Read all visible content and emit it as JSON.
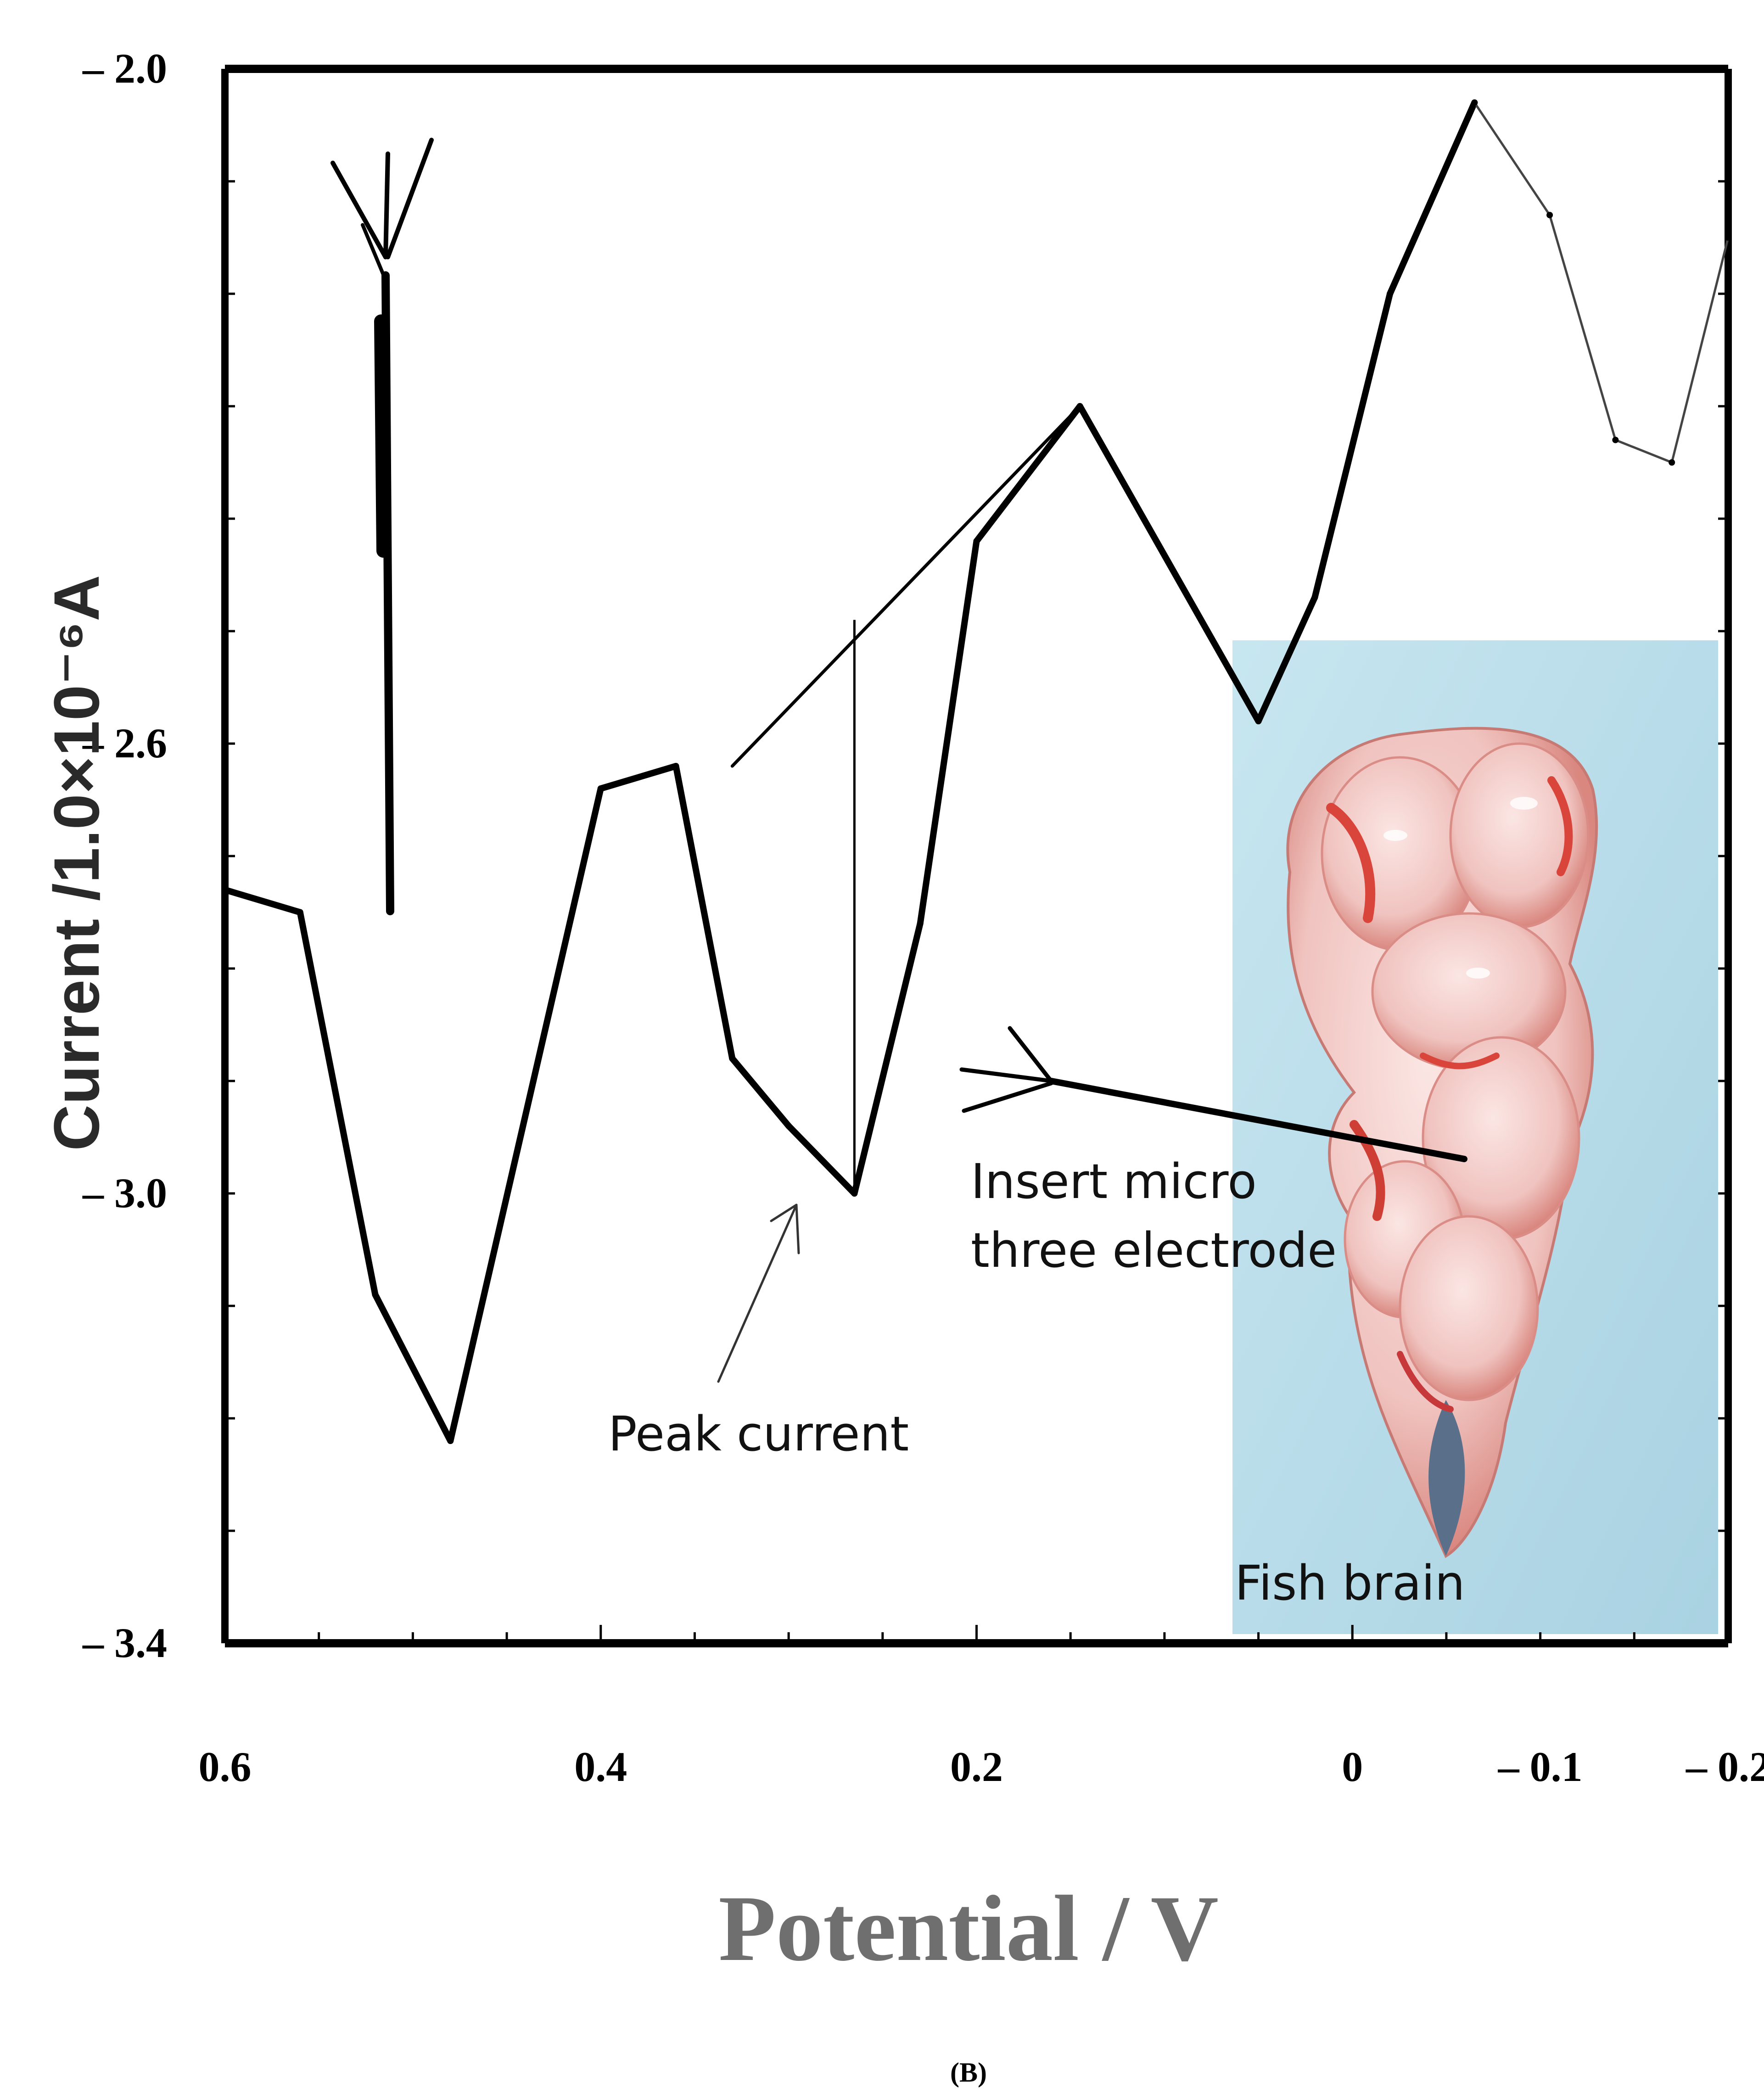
{
  "chart_data": {
    "type": "line",
    "xlabel": "Potential / V",
    "ylabel": "Current /1.0×10⁻⁶A",
    "xlim": [
      0.6,
      -0.2
    ],
    "ylim": [
      -3.4,
      -2.0
    ],
    "x_ticks": [
      "0.6",
      "0.4",
      "0.2",
      "0",
      "– 0.1",
      "– 0.2"
    ],
    "y_ticks": [
      "– 2.0",
      "– 2.6",
      "– 3.0",
      "– 3.4"
    ],
    "grid": false,
    "series": [
      {
        "x": [
          0.6,
          0.56,
          0.52,
          0.48,
          0.4,
          0.36,
          0.33,
          0.3,
          0.265,
          0.23,
          0.2,
          0.145,
          0.05,
          0.02,
          -0.02,
          -0.065,
          -0.105,
          -0.14,
          -0.17,
          -0.2
        ],
        "y": [
          -2.73,
          -2.75,
          -3.09,
          -3.22,
          -2.64,
          -2.62,
          -2.88,
          -2.94,
          -3.0,
          -2.76,
          -2.42,
          -2.3,
          -2.58,
          -2.47,
          -2.2,
          -2.03,
          -2.13,
          -2.33,
          -2.35,
          -2.15
        ]
      }
    ],
    "baseline": {
      "x": [
        0.33,
        0.145
      ],
      "y": [
        -2.62,
        -2.3
      ]
    },
    "peak_marker": {
      "x": 0.265,
      "y_top": -2.49,
      "y_bottom": -3.0
    }
  },
  "annotations": {
    "peak": "Peak current",
    "insert": [
      "Insert micro",
      "three electrode"
    ],
    "photo": "Fish brain"
  },
  "caption": "(B)",
  "colors": {
    "line": "#000000",
    "photo_bg": "#bfe0ec",
    "brain": "#f1c9c5",
    "tissue_red": "#d94a40",
    "axis_label_gray": "#6f6f6f"
  }
}
